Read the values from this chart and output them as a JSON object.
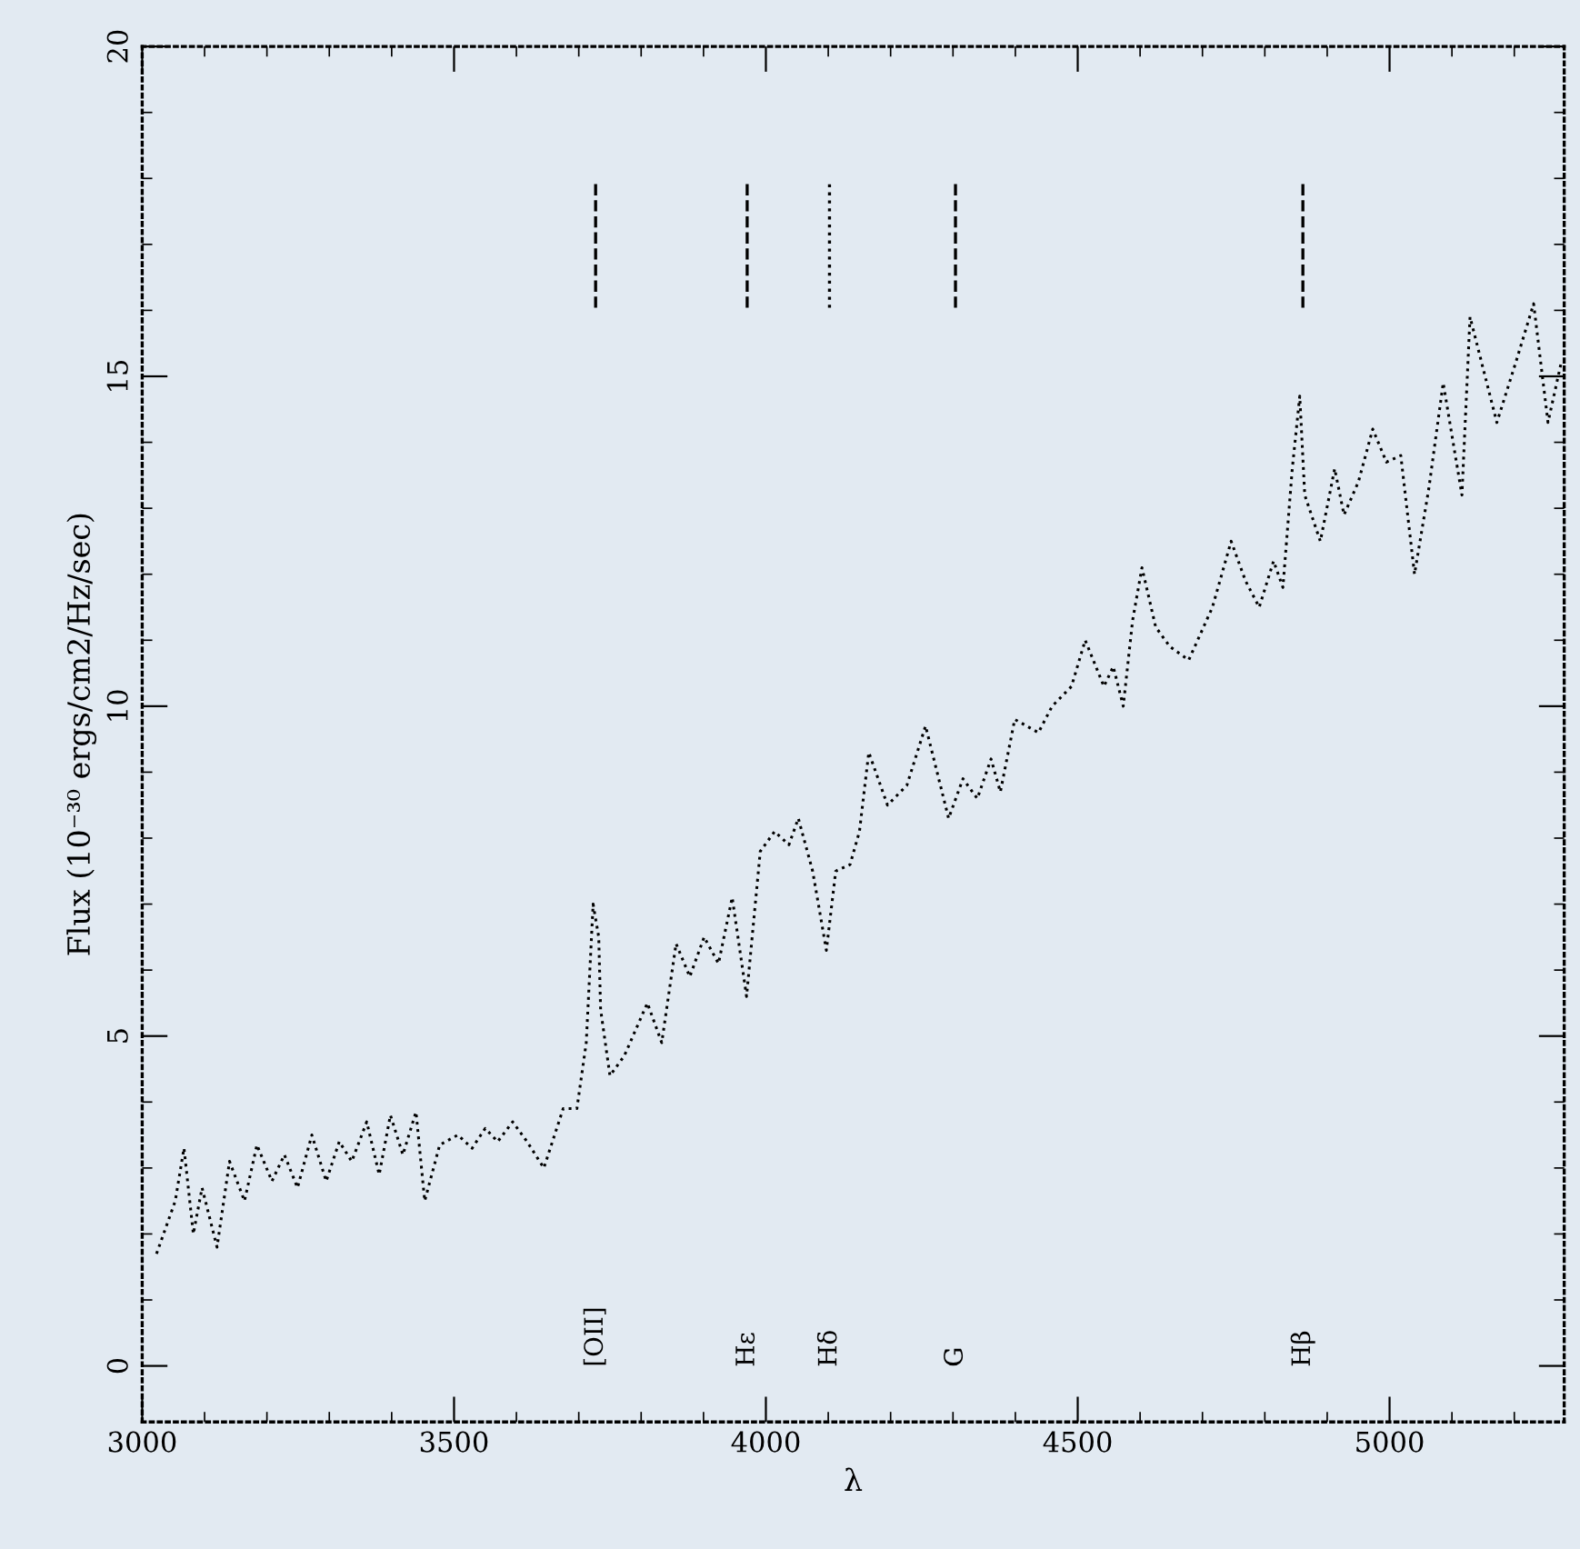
{
  "chart_data": {
    "type": "line",
    "xlabel": "λ",
    "ylabel": "Flux (10⁻³⁰ ergs/cm2/Hz/sec)",
    "xlim": [
      3000,
      5280
    ],
    "ylim": [
      -0.85,
      20
    ],
    "xticks": [
      3000,
      3500,
      4000,
      4500,
      5000
    ],
    "yticks": [
      0,
      5,
      10,
      15,
      20
    ],
    "grid": false,
    "marker": "none",
    "line_style": "dotted",
    "series": [
      {
        "color": "#000000",
        "x": [
          3023,
          3053,
          3067,
          3082,
          3096,
          3120,
          3140,
          3164,
          3184,
          3208,
          3228,
          3249,
          3272,
          3295,
          3316,
          3336,
          3360,
          3380,
          3398,
          3418,
          3439,
          3453,
          3477,
          3506,
          3529,
          3550,
          3570,
          3594,
          3617,
          3644,
          3675,
          3697,
          3712,
          3723,
          3732,
          3735,
          3750,
          3773,
          3810,
          3833,
          3856,
          3878,
          3901,
          3924,
          3946,
          3969,
          3991,
          4014,
          4037,
          4052,
          4075,
          4097,
          4112,
          4135,
          4150,
          4165,
          4195,
          4226,
          4256,
          4293,
          4316,
          4339,
          4361,
          4376,
          4399,
          4437,
          4459,
          4490,
          4512,
          4542,
          4557,
          4573,
          4588,
          4603,
          4625,
          4648,
          4678,
          4716,
          4746,
          4769,
          4791,
          4814,
          4829,
          4844,
          4856,
          4864,
          4889,
          4912,
          4927,
          4950,
          4973,
          4995,
          5018,
          5040,
          5063,
          5086,
          5116,
          5129,
          5172,
          5202,
          5231,
          5254,
          5275
        ],
        "values": [
          1.7,
          2.5,
          3.3,
          2.0,
          2.7,
          1.8,
          3.1,
          2.5,
          3.35,
          2.8,
          3.2,
          2.7,
          3.5,
          2.8,
          3.4,
          3.1,
          3.7,
          2.9,
          3.8,
          3.2,
          3.85,
          2.5,
          3.35,
          3.5,
          3.3,
          3.6,
          3.4,
          3.7,
          3.4,
          3.0,
          3.9,
          3.9,
          4.9,
          7.0,
          6.5,
          5.4,
          4.4,
          4.7,
          5.5,
          4.9,
          6.4,
          5.9,
          6.5,
          6.1,
          7.1,
          5.6,
          7.8,
          8.1,
          7.9,
          8.3,
          7.5,
          6.3,
          7.5,
          7.6,
          8.1,
          9.3,
          8.5,
          8.8,
          9.7,
          8.3,
          8.9,
          8.6,
          9.2,
          8.7,
          9.8,
          9.6,
          10.0,
          10.3,
          11.0,
          10.3,
          10.6,
          10.0,
          11.3,
          12.1,
          11.2,
          10.9,
          10.7,
          11.5,
          12.5,
          11.9,
          11.5,
          12.2,
          11.8,
          13.6,
          14.7,
          13.2,
          12.5,
          13.6,
          12.9,
          13.4,
          14.2,
          13.7,
          13.8,
          12.0,
          13.3,
          14.9,
          13.2,
          15.9,
          14.3,
          15.2,
          16.1,
          14.3,
          15.2
        ]
      }
    ],
    "ref_lines": [
      {
        "axis": "x",
        "value": 3727,
        "line_style": "dashed"
      },
      {
        "axis": "x",
        "value": 3970,
        "line_style": "dashed"
      },
      {
        "axis": "x",
        "value": 4102,
        "line_style": "dotted"
      },
      {
        "axis": "x",
        "value": 4304,
        "line_style": "dashed"
      },
      {
        "axis": "x",
        "value": 4861,
        "line_style": "dashed"
      }
    ],
    "annotations": [
      "[OII]",
      "Hε",
      "Hδ",
      "G",
      "Hβ"
    ]
  }
}
